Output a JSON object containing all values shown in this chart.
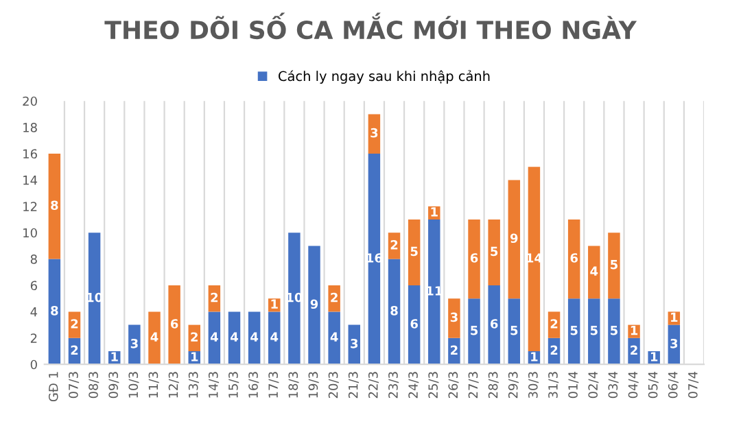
{
  "chart_data": {
    "type": "bar",
    "title": "THEO DÕI SỐ CA MẮC MỚI THEO NGÀY",
    "stacked": true,
    "data_labels": true,
    "legend": "top",
    "grid": "x",
    "categories": [
      "GĐ 1",
      "07/3",
      "08/3",
      "09/3",
      "10/3",
      "11/3",
      "12/3",
      "13/3",
      "14/3",
      "15/3",
      "16/3",
      "17/3",
      "18/3",
      "19/3",
      "20/3",
      "21/3",
      "22/3",
      "23/3",
      "24/3",
      "25/3",
      "26/3",
      "27/3",
      "28/3",
      "29/3",
      "30/3",
      "31/3",
      "01/4",
      "02/4",
      "03/4",
      "04/4",
      "05/4",
      "06/4",
      "07/4"
    ],
    "ylim": [
      0,
      20
    ],
    "yticks": [
      0,
      2,
      4,
      6,
      8,
      10,
      12,
      14,
      16,
      18,
      20
    ],
    "series": [
      {
        "name": "Cách ly ngay sau khi nhập cảnh",
        "color": "#4472c4",
        "values": [
          8,
          2,
          10,
          1,
          3,
          null,
          null,
          1,
          4,
          4,
          4,
          4,
          10,
          9,
          4,
          3,
          16,
          8,
          6,
          11,
          2,
          5,
          6,
          5,
          1,
          2,
          5,
          5,
          5,
          2,
          1,
          3,
          null
        ]
      },
      {
        "color": "#ed7d31",
        "values": [
          8,
          2,
          null,
          null,
          null,
          4,
          6,
          2,
          2,
          null,
          null,
          1,
          null,
          null,
          2,
          null,
          3,
          2,
          5,
          1,
          3,
          6,
          5,
          9,
          14,
          2,
          6,
          4,
          5,
          1,
          null,
          1,
          null
        ]
      }
    ]
  }
}
